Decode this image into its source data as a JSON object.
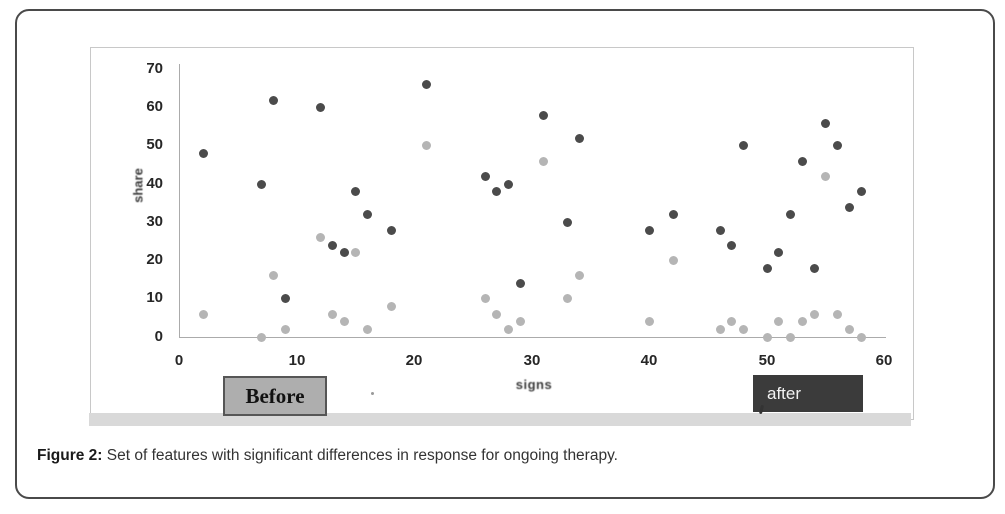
{
  "caption": {
    "label": "Figure 2:",
    "text": " Set of features with significant differences in response for ongoing therapy."
  },
  "legend": {
    "before": {
      "label": "Before",
      "bg": "#aeaeae",
      "text_color": "#111111",
      "border_color": "#565656"
    },
    "after": {
      "label": "after",
      "bg": "#3b3b3b",
      "text_color": "#f2f2f2"
    }
  },
  "colors": {
    "before_points": "#b5b5b5",
    "after_points": "#4b4b4b",
    "axis_line": "#ababab",
    "tick_text": "#262626",
    "card_border": "#4a4a4a",
    "panel_border": "#c8c8c8",
    "panel_bottom_band": "#d9d9d9"
  },
  "chart_data": {
    "type": "scatter",
    "title": "",
    "xlabel": "signs",
    "ylabel": "share",
    "xlim": [
      0,
      60
    ],
    "ylim": [
      0,
      70
    ],
    "x_ticks": [
      0,
      10,
      20,
      30,
      40,
      50,
      60
    ],
    "y_ticks": [
      0,
      10,
      20,
      30,
      40,
      50,
      60,
      70
    ],
    "grid": false,
    "legend_position": "below-plot",
    "series": [
      {
        "name": "Before",
        "color": "#b5b5b5",
        "points": [
          [
            2,
            6
          ],
          [
            7,
            0
          ],
          [
            8,
            16
          ],
          [
            9,
            2
          ],
          [
            12,
            26
          ],
          [
            13,
            6
          ],
          [
            14,
            4
          ],
          [
            15,
            22
          ],
          [
            16,
            2
          ],
          [
            18,
            8
          ],
          [
            21,
            50
          ],
          [
            26,
            10
          ],
          [
            27,
            6
          ],
          [
            28,
            2
          ],
          [
            29,
            4
          ],
          [
            31,
            46
          ],
          [
            33,
            10
          ],
          [
            34,
            16
          ],
          [
            40,
            4
          ],
          [
            42,
            20
          ],
          [
            46,
            2
          ],
          [
            47,
            4
          ],
          [
            48,
            2
          ],
          [
            50,
            0
          ],
          [
            51,
            4
          ],
          [
            52,
            0
          ],
          [
            53,
            4
          ],
          [
            54,
            6
          ],
          [
            55,
            42
          ],
          [
            56,
            6
          ],
          [
            57,
            2
          ],
          [
            58,
            0
          ]
        ]
      },
      {
        "name": "after",
        "color": "#4b4b4b",
        "points": [
          [
            2,
            48
          ],
          [
            7,
            40
          ],
          [
            8,
            62
          ],
          [
            9,
            10
          ],
          [
            12,
            60
          ],
          [
            13,
            24
          ],
          [
            14,
            22
          ],
          [
            15,
            38
          ],
          [
            16,
            32
          ],
          [
            18,
            28
          ],
          [
            21,
            66
          ],
          [
            26,
            42
          ],
          [
            27,
            38
          ],
          [
            28,
            40
          ],
          [
            29,
            14
          ],
          [
            31,
            58
          ],
          [
            33,
            30
          ],
          [
            34,
            52
          ],
          [
            40,
            28
          ],
          [
            42,
            32
          ],
          [
            46,
            28
          ],
          [
            47,
            24
          ],
          [
            48,
            50
          ],
          [
            50,
            18
          ],
          [
            51,
            22
          ],
          [
            52,
            32
          ],
          [
            53,
            46
          ],
          [
            54,
            18
          ],
          [
            55,
            56
          ],
          [
            56,
            50
          ],
          [
            57,
            34
          ],
          [
            58,
            38
          ]
        ]
      }
    ]
  }
}
